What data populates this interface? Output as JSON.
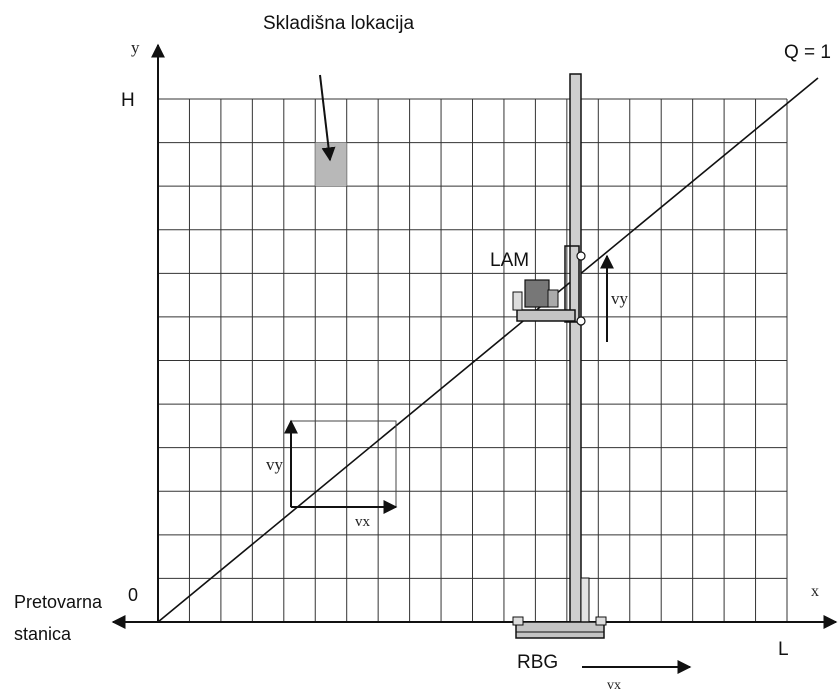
{
  "labels": {
    "storage_location": "Skladišna lokacija",
    "q_line": "Q = 1",
    "y_axis": "y",
    "x_axis": "x",
    "height": "H",
    "length": "L",
    "origin": "0",
    "transfer_station_line1": "Pretovarna",
    "transfer_station_line2": "stanica",
    "lam": "LAM",
    "rbg": "RBG",
    "vy_lift": "vy",
    "vy_box": "vy",
    "vx_box": "vx",
    "vx_bottom": "vx"
  },
  "grid": {
    "columns": 20,
    "rows": 12
  },
  "colors": {
    "line": "#111111",
    "grid": "#333333",
    "highlight_cell": "#b8b8b8",
    "mast_fill": "#cfcfcf",
    "carriage_fill": "#c4c4c4",
    "load_fill": "#777777"
  }
}
